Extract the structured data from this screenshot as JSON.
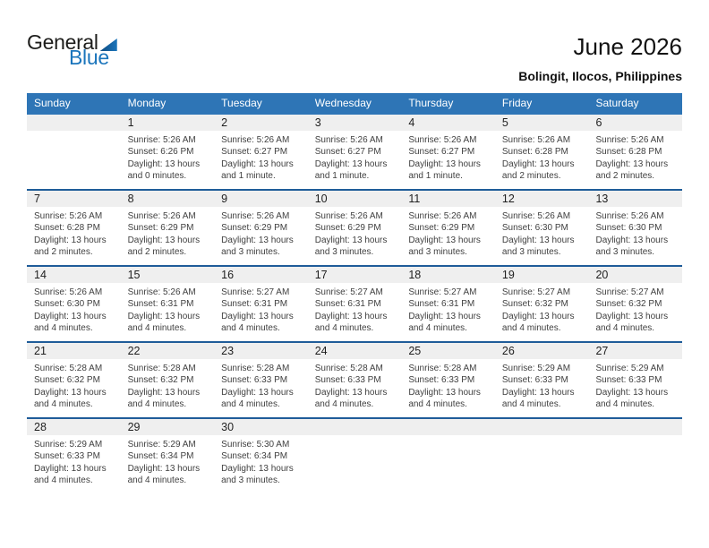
{
  "logo": {
    "text_general": "General",
    "text_blue": "Blue"
  },
  "header": {
    "title": "June 2026",
    "location": "Bolingit, Ilocos, Philippines"
  },
  "colors": {
    "header_bg": "#2e75b6",
    "week_separator": "#1f5c99",
    "day_band_bg": "#efefef",
    "logo_blue": "#1b75bc",
    "header_text": "#ffffff"
  },
  "calendar": {
    "day_headers": [
      "Sunday",
      "Monday",
      "Tuesday",
      "Wednesday",
      "Thursday",
      "Friday",
      "Saturday"
    ],
    "weeks": [
      [
        null,
        {
          "day": "1",
          "sunrise": "Sunrise: 5:26 AM",
          "sunset": "Sunset: 6:26 PM",
          "daylight": "Daylight: 13 hours\nand 0 minutes."
        },
        {
          "day": "2",
          "sunrise": "Sunrise: 5:26 AM",
          "sunset": "Sunset: 6:27 PM",
          "daylight": "Daylight: 13 hours\nand 1 minute."
        },
        {
          "day": "3",
          "sunrise": "Sunrise: 5:26 AM",
          "sunset": "Sunset: 6:27 PM",
          "daylight": "Daylight: 13 hours\nand 1 minute."
        },
        {
          "day": "4",
          "sunrise": "Sunrise: 5:26 AM",
          "sunset": "Sunset: 6:27 PM",
          "daylight": "Daylight: 13 hours\nand 1 minute."
        },
        {
          "day": "5",
          "sunrise": "Sunrise: 5:26 AM",
          "sunset": "Sunset: 6:28 PM",
          "daylight": "Daylight: 13 hours\nand 2 minutes."
        },
        {
          "day": "6",
          "sunrise": "Sunrise: 5:26 AM",
          "sunset": "Sunset: 6:28 PM",
          "daylight": "Daylight: 13 hours\nand 2 minutes."
        }
      ],
      [
        {
          "day": "7",
          "sunrise": "Sunrise: 5:26 AM",
          "sunset": "Sunset: 6:28 PM",
          "daylight": "Daylight: 13 hours\nand 2 minutes."
        },
        {
          "day": "8",
          "sunrise": "Sunrise: 5:26 AM",
          "sunset": "Sunset: 6:29 PM",
          "daylight": "Daylight: 13 hours\nand 2 minutes."
        },
        {
          "day": "9",
          "sunrise": "Sunrise: 5:26 AM",
          "sunset": "Sunset: 6:29 PM",
          "daylight": "Daylight: 13 hours\nand 3 minutes."
        },
        {
          "day": "10",
          "sunrise": "Sunrise: 5:26 AM",
          "sunset": "Sunset: 6:29 PM",
          "daylight": "Daylight: 13 hours\nand 3 minutes."
        },
        {
          "day": "11",
          "sunrise": "Sunrise: 5:26 AM",
          "sunset": "Sunset: 6:29 PM",
          "daylight": "Daylight: 13 hours\nand 3 minutes."
        },
        {
          "day": "12",
          "sunrise": "Sunrise: 5:26 AM",
          "sunset": "Sunset: 6:30 PM",
          "daylight": "Daylight: 13 hours\nand 3 minutes."
        },
        {
          "day": "13",
          "sunrise": "Sunrise: 5:26 AM",
          "sunset": "Sunset: 6:30 PM",
          "daylight": "Daylight: 13 hours\nand 3 minutes."
        }
      ],
      [
        {
          "day": "14",
          "sunrise": "Sunrise: 5:26 AM",
          "sunset": "Sunset: 6:30 PM",
          "daylight": "Daylight: 13 hours\nand 4 minutes."
        },
        {
          "day": "15",
          "sunrise": "Sunrise: 5:26 AM",
          "sunset": "Sunset: 6:31 PM",
          "daylight": "Daylight: 13 hours\nand 4 minutes."
        },
        {
          "day": "16",
          "sunrise": "Sunrise: 5:27 AM",
          "sunset": "Sunset: 6:31 PM",
          "daylight": "Daylight: 13 hours\nand 4 minutes."
        },
        {
          "day": "17",
          "sunrise": "Sunrise: 5:27 AM",
          "sunset": "Sunset: 6:31 PM",
          "daylight": "Daylight: 13 hours\nand 4 minutes."
        },
        {
          "day": "18",
          "sunrise": "Sunrise: 5:27 AM",
          "sunset": "Sunset: 6:31 PM",
          "daylight": "Daylight: 13 hours\nand 4 minutes."
        },
        {
          "day": "19",
          "sunrise": "Sunrise: 5:27 AM",
          "sunset": "Sunset: 6:32 PM",
          "daylight": "Daylight: 13 hours\nand 4 minutes."
        },
        {
          "day": "20",
          "sunrise": "Sunrise: 5:27 AM",
          "sunset": "Sunset: 6:32 PM",
          "daylight": "Daylight: 13 hours\nand 4 minutes."
        }
      ],
      [
        {
          "day": "21",
          "sunrise": "Sunrise: 5:28 AM",
          "sunset": "Sunset: 6:32 PM",
          "daylight": "Daylight: 13 hours\nand 4 minutes."
        },
        {
          "day": "22",
          "sunrise": "Sunrise: 5:28 AM",
          "sunset": "Sunset: 6:32 PM",
          "daylight": "Daylight: 13 hours\nand 4 minutes."
        },
        {
          "day": "23",
          "sunrise": "Sunrise: 5:28 AM",
          "sunset": "Sunset: 6:33 PM",
          "daylight": "Daylight: 13 hours\nand 4 minutes."
        },
        {
          "day": "24",
          "sunrise": "Sunrise: 5:28 AM",
          "sunset": "Sunset: 6:33 PM",
          "daylight": "Daylight: 13 hours\nand 4 minutes."
        },
        {
          "day": "25",
          "sunrise": "Sunrise: 5:28 AM",
          "sunset": "Sunset: 6:33 PM",
          "daylight": "Daylight: 13 hours\nand 4 minutes."
        },
        {
          "day": "26",
          "sunrise": "Sunrise: 5:29 AM",
          "sunset": "Sunset: 6:33 PM",
          "daylight": "Daylight: 13 hours\nand 4 minutes."
        },
        {
          "day": "27",
          "sunrise": "Sunrise: 5:29 AM",
          "sunset": "Sunset: 6:33 PM",
          "daylight": "Daylight: 13 hours\nand 4 minutes."
        }
      ],
      [
        {
          "day": "28",
          "sunrise": "Sunrise: 5:29 AM",
          "sunset": "Sunset: 6:33 PM",
          "daylight": "Daylight: 13 hours\nand 4 minutes."
        },
        {
          "day": "29",
          "sunrise": "Sunrise: 5:29 AM",
          "sunset": "Sunset: 6:34 PM",
          "daylight": "Daylight: 13 hours\nand 4 minutes."
        },
        {
          "day": "30",
          "sunrise": "Sunrise: 5:30 AM",
          "sunset": "Sunset: 6:34 PM",
          "daylight": "Daylight: 13 hours\nand 3 minutes."
        },
        null,
        null,
        null,
        null
      ]
    ]
  }
}
